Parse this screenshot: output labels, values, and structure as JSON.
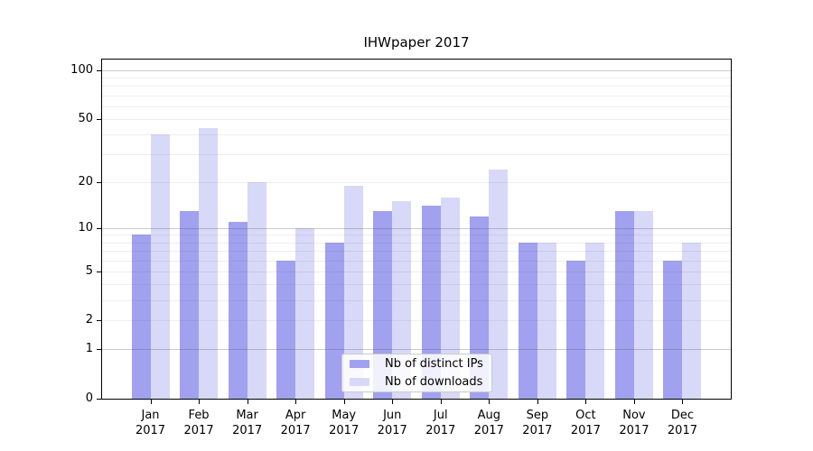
{
  "title": "IHWpaper 2017",
  "chart_data": {
    "type": "bar",
    "title": "IHWpaper 2017",
    "y_scale": "log10(1+x)",
    "grid": "both (minor + major horizontal gridlines)",
    "legend_position": "inside bottom-center",
    "categories": [
      {
        "month": "Jan",
        "year": "2017"
      },
      {
        "month": "Feb",
        "year": "2017"
      },
      {
        "month": "Mar",
        "year": "2017"
      },
      {
        "month": "Apr",
        "year": "2017"
      },
      {
        "month": "May",
        "year": "2017"
      },
      {
        "month": "Jun",
        "year": "2017"
      },
      {
        "month": "Jul",
        "year": "2017"
      },
      {
        "month": "Aug",
        "year": "2017"
      },
      {
        "month": "Sep",
        "year": "2017"
      },
      {
        "month": "Oct",
        "year": "2017"
      },
      {
        "month": "Nov",
        "year": "2017"
      },
      {
        "month": "Dec",
        "year": "2017"
      }
    ],
    "series": [
      {
        "name": "Nb of distinct IPs",
        "color": "#a1a1ef",
        "values": [
          9,
          13,
          11,
          6,
          8,
          13,
          14,
          12,
          8,
          6,
          13,
          6
        ]
      },
      {
        "name": "Nb of downloads",
        "color": "#d8d8f8",
        "values": [
          40,
          44,
          20,
          10,
          19,
          15,
          16,
          24,
          8,
          8,
          13,
          8
        ]
      }
    ],
    "y_ticks": [
      100,
      50,
      20,
      10,
      5,
      2,
      1,
      0
    ],
    "y_minor_grid_values": [
      2,
      3,
      4,
      5,
      6,
      7,
      8,
      9,
      20,
      30,
      40,
      50,
      60,
      70,
      80,
      90
    ],
    "y_major_grid_values": [
      1,
      10,
      100
    ],
    "ylim": [
      0,
      120
    ]
  },
  "colors": {
    "distinct_ips_bar": "#a1a1ef",
    "downloads_bar": "#d8d8f8",
    "axis": "#000000",
    "grid_minor": "#ececec",
    "grid_major": "#bcbcbc",
    "legend_border": "#cccccc"
  }
}
